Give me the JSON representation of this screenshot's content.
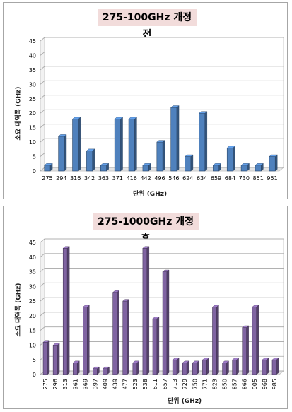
{
  "chart_data": [
    {
      "type": "bar",
      "title": "275-100GHz 개정 전",
      "xlabel": "단위 (GHz)",
      "ylabel": "소요 대역폭 (GHz)",
      "ylim": [
        0,
        45
      ],
      "yticks": [
        0,
        5,
        10,
        15,
        20,
        25,
        30,
        35,
        40,
        45
      ],
      "grid": true,
      "color": "#4f81bd",
      "categories": [
        "275",
        "294",
        "316",
        "342",
        "363",
        "371",
        "416",
        "442",
        "496",
        "546",
        "624",
        "634",
        "659",
        "684",
        "730",
        "851",
        "951"
      ],
      "values": [
        2,
        12,
        18,
        7,
        2,
        18,
        18,
        2,
        10,
        22,
        5,
        20,
        2,
        8,
        2,
        2,
        5
      ]
    },
    {
      "type": "bar",
      "title": "275-1000GHz 개정 후",
      "xlabel": "단위 (GHz)",
      "ylabel": "소요 대역폭 (GHz)",
      "ylim": [
        0,
        45
      ],
      "yticks": [
        0,
        5,
        10,
        15,
        20,
        25,
        30,
        35,
        40,
        45
      ],
      "grid": true,
      "color": "#8064a2",
      "categories": [
        "275",
        "296",
        "313",
        "361",
        "369",
        "397",
        "409",
        "439",
        "477",
        "523",
        "538",
        "611",
        "657",
        "713",
        "729",
        "750",
        "771",
        "823",
        "850",
        "857",
        "866",
        "905",
        "968",
        "985"
      ],
      "values": [
        11,
        10,
        43,
        4,
        23,
        2,
        2,
        28,
        25,
        4,
        43,
        19,
        35,
        5,
        4,
        4,
        5,
        23,
        4,
        5,
        16,
        23,
        5,
        5
      ]
    }
  ]
}
